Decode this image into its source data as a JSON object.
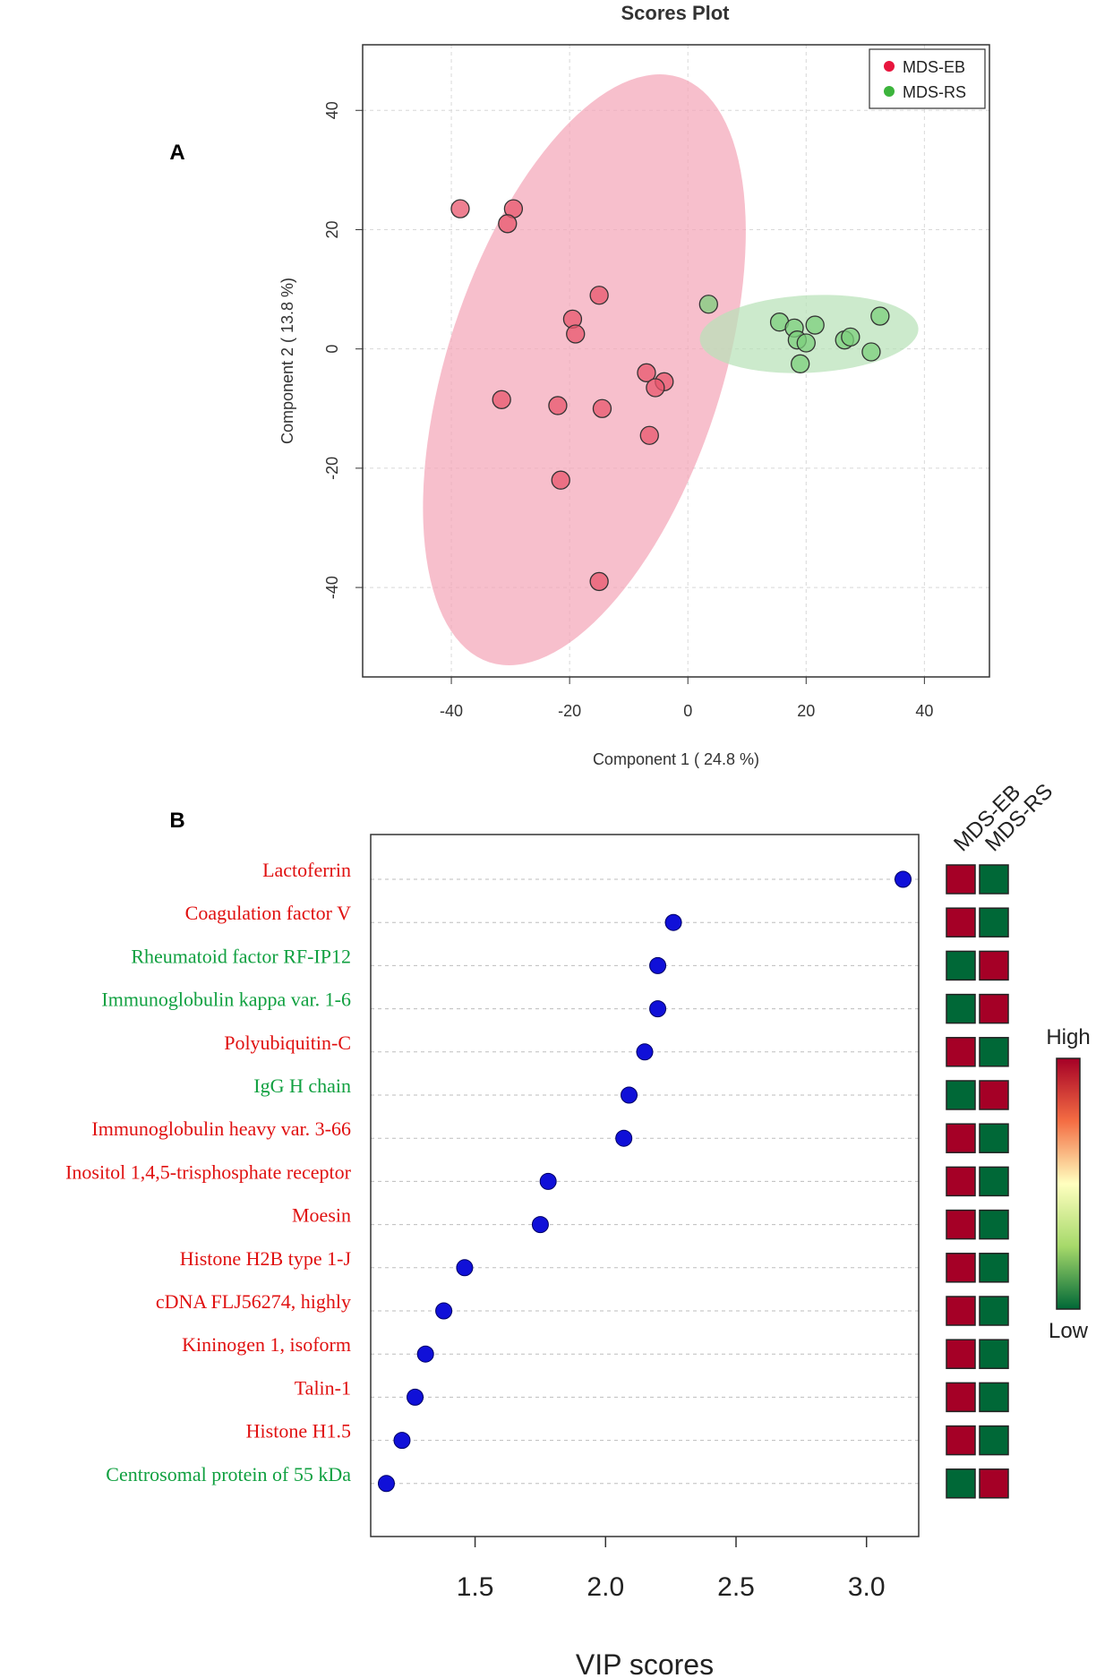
{
  "panels": {
    "a_label": "A",
    "b_label": "B"
  },
  "colors": {
    "group1": "#e8556c",
    "group2": "#7ccf7c",
    "ellipse1": "#f4a6b8",
    "ellipse2": "#b8e2b8",
    "vip_dot": "#1010d8",
    "label_up": "#e01010",
    "label_down": "#10a040",
    "heat_high": "#a50026",
    "heat_low": "#006837"
  },
  "chart_data": [
    {
      "type": "scatter",
      "title": "Scores Plot",
      "xlabel": "Component 1 ( 24.8 %)",
      "ylabel": "Component 2 ( 13.8 %)",
      "xlim": [
        -55,
        51
      ],
      "ylim": [
        -55,
        51
      ],
      "xticks": [
        -40,
        -20,
        0,
        20,
        40
      ],
      "xtick_labels": [
        "-40",
        "-20",
        "0",
        "20",
        "40"
      ],
      "yticks": [
        -40,
        -20,
        0,
        20,
        40
      ],
      "ytick_labels": [
        "-40",
        "-20",
        "0",
        "20",
        "40"
      ],
      "grid": true,
      "legend": {
        "position": "top-right",
        "entries": [
          "MDS-EB",
          "MDS-RS"
        ]
      },
      "series": [
        {
          "name": "MDS-EB",
          "points": [
            [
              -38.5,
              23.5
            ],
            [
              -29.5,
              23.5
            ],
            [
              -30.5,
              21
            ],
            [
              -15,
              9
            ],
            [
              -19.5,
              5
            ],
            [
              -19,
              2.5
            ],
            [
              -7,
              -4
            ],
            [
              -4,
              -5.5
            ],
            [
              -5.5,
              -6.5
            ],
            [
              -31.5,
              -8.5
            ],
            [
              -22,
              -9.5
            ],
            [
              -14.5,
              -10
            ],
            [
              -6.5,
              -14.5
            ],
            [
              -21.5,
              -22
            ],
            [
              -15,
              -39
            ]
          ],
          "ellipse": {
            "cx": -17.5,
            "cy": -3.5,
            "rx": 52,
            "ry": 23,
            "angle_deg": 108
          }
        },
        {
          "name": "MDS-RS",
          "points": [
            [
              3.5,
              7.5
            ],
            [
              15.5,
              4.5
            ],
            [
              18,
              3.5
            ],
            [
              21.5,
              4
            ],
            [
              32.5,
              5.5
            ],
            [
              18.5,
              1.5
            ],
            [
              20,
              1
            ],
            [
              26.5,
              1.5
            ],
            [
              27.5,
              2
            ],
            [
              31,
              -0.5
            ],
            [
              19,
              -2.5
            ]
          ],
          "ellipse": {
            "cx": 20.5,
            "cy": 2.5,
            "rx": 18.5,
            "ry": 6.5,
            "angle_deg": -3
          }
        }
      ]
    },
    {
      "type": "scatter",
      "subtype": "vip-dotplot",
      "xlabel": "VIP scores",
      "xlim": [
        1.1,
        3.2
      ],
      "xticks": [
        1.5,
        2.0,
        2.5,
        3.0
      ],
      "xtick_labels": [
        "1.5",
        "2.0",
        "2.5",
        "3.0"
      ],
      "grid": true,
      "heatmap_columns": [
        "MDS-EB",
        "MDS-RS"
      ],
      "colorbar": {
        "high": "High",
        "low": "Low"
      },
      "rows": [
        {
          "label": "Lactoferrin",
          "vip": 3.14,
          "dir": "up",
          "EB": "high",
          "RS": "low"
        },
        {
          "label": "Coagulation factor V",
          "vip": 2.26,
          "dir": "up",
          "EB": "high",
          "RS": "low"
        },
        {
          "label": "Rheumatoid factor RF-IP12",
          "vip": 2.2,
          "dir": "down",
          "EB": "low",
          "RS": "high"
        },
        {
          "label": "Immunoglobulin kappa var. 1-6",
          "vip": 2.2,
          "dir": "down",
          "EB": "low",
          "RS": "high"
        },
        {
          "label": "Polyubiquitin-C",
          "vip": 2.15,
          "dir": "up",
          "EB": "high",
          "RS": "low"
        },
        {
          "label": "IgG H chain",
          "vip": 2.09,
          "dir": "down",
          "EB": "low",
          "RS": "high"
        },
        {
          "label": "Immunoglobulin heavy var. 3-66",
          "vip": 2.07,
          "dir": "up",
          "EB": "high",
          "RS": "low"
        },
        {
          "label": "Inositol 1,4,5-trisphosphate receptor",
          "vip": 1.78,
          "dir": "up",
          "EB": "high",
          "RS": "low"
        },
        {
          "label": "Moesin",
          "vip": 1.75,
          "dir": "up",
          "EB": "high",
          "RS": "low"
        },
        {
          "label": "Histone H2B type 1-J",
          "vip": 1.46,
          "dir": "up",
          "EB": "high",
          "RS": "low"
        },
        {
          "label": "cDNA FLJ56274, highly",
          "vip": 1.38,
          "dir": "up",
          "EB": "high",
          "RS": "low"
        },
        {
          "label": "Kininogen 1, isoform",
          "vip": 1.31,
          "dir": "up",
          "EB": "high",
          "RS": "low"
        },
        {
          "label": "Talin-1",
          "vip": 1.27,
          "dir": "up",
          "EB": "high",
          "RS": "low"
        },
        {
          "label": "Histone H1.5",
          "vip": 1.22,
          "dir": "up",
          "EB": "high",
          "RS": "low"
        },
        {
          "label": "Centrosomal protein of 55 kDa",
          "vip": 1.16,
          "dir": "down",
          "EB": "low",
          "RS": "high"
        }
      ]
    }
  ]
}
